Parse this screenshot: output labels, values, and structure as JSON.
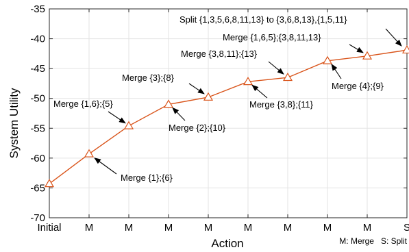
{
  "chart_data": {
    "type": "line",
    "xlabel": "Action",
    "ylabel": "System Utility",
    "ylim": [
      -70,
      -35
    ],
    "yticks": [
      -70,
      -65,
      -60,
      -55,
      -50,
      -45,
      -40,
      -35
    ],
    "grid": true,
    "categories": [
      "Initial",
      "M",
      "M",
      "M",
      "M",
      "M",
      "M",
      "M",
      "M",
      "S"
    ],
    "series": [
      {
        "color": "#d95319",
        "marker": "triangle",
        "values": [
          -64.3,
          -59.3,
          -54.6,
          -51.0,
          -49.8,
          -47.2,
          -46.5,
          -43.7,
          -42.9,
          -41.9
        ]
      }
    ],
    "annotations": [
      {
        "text": "Merge {1};{6}",
        "point_index": 1
      },
      {
        "text": "Merge {1,6};{5}",
        "point_index": 2
      },
      {
        "text": "Merge {2};{10}",
        "point_index": 3
      },
      {
        "text": "Merge {3};{8}",
        "point_index": 4
      },
      {
        "text": "Merge {3,8};{11}",
        "point_index": 5
      },
      {
        "text": "Merge {3,8,11};{13}",
        "point_index": 6
      },
      {
        "text": "Merge {4};{9}",
        "point_index": 7
      },
      {
        "text": "Merge {1,6,5};{3,8,11,13}",
        "point_index": 8
      },
      {
        "text": "Split {1,3,5,6,8,11,13} to {3,6,8,13},{1,5,11}",
        "point_index": 9
      }
    ],
    "legend_note": "M: Merge   S: Split"
  }
}
